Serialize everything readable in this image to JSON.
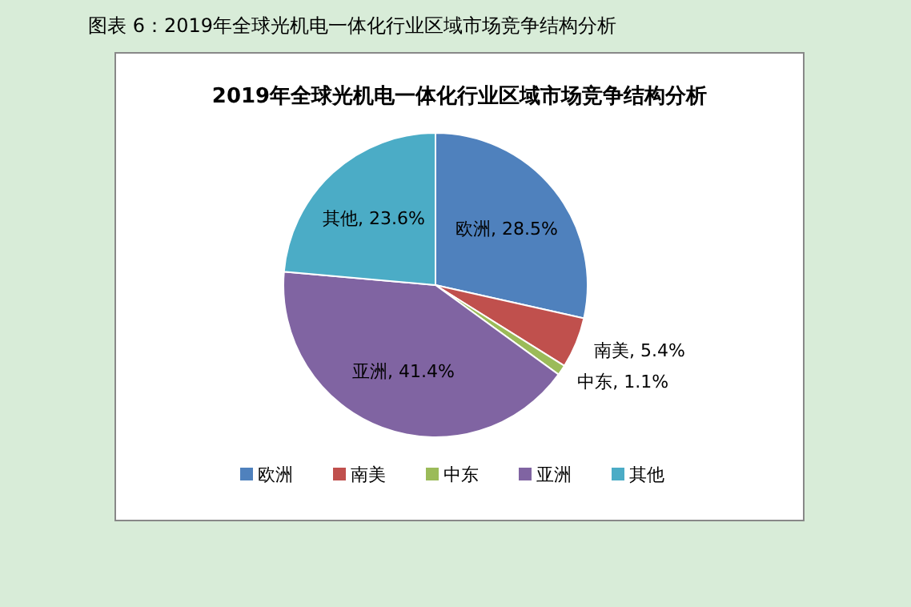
{
  "chart_data": {
    "type": "pie",
    "title": "2019年全球光机电一体化行业区域市场竞争结构分析",
    "annotations": [
      "图表 6：2019年全球光机电一体化行业区域市场竞争结构分析"
    ],
    "categories": [
      "欧洲",
      "南美",
      "中东",
      "亚洲",
      "其他"
    ],
    "values": [
      28.5,
      5.4,
      1.1,
      41.4,
      23.6
    ],
    "colors": [
      "#4f81bd",
      "#c0504d",
      "#9bbb59",
      "#8064a2",
      "#4bacc6"
    ],
    "value_labels": [
      "欧洲, 28.5%",
      "南美, 5.4%",
      "中东, 1.1%",
      "亚洲, 41.4%",
      "其他, 23.6%"
    ],
    "legend": "bottom"
  }
}
